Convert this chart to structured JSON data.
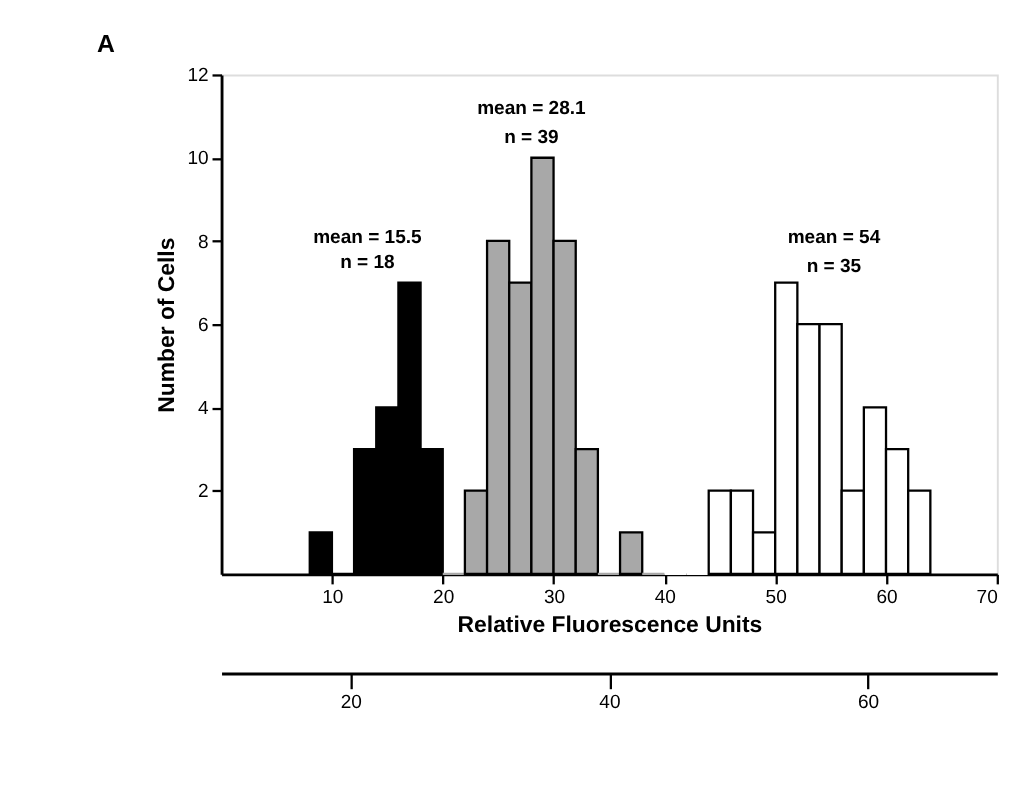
{
  "chart_data": {
    "type": "histogram",
    "title": "A",
    "xlabel": "Relative Fluorescence Units",
    "ylabel": "Number of Cells",
    "bins": [
      8,
      10,
      12,
      14,
      16,
      18,
      20,
      22,
      24,
      26,
      28,
      30,
      32,
      34,
      36,
      38,
      40,
      42,
      44,
      46,
      48,
      50,
      52,
      54,
      56,
      58,
      60,
      62,
      64
    ],
    "values": [
      1,
      0,
      3,
      4,
      7,
      3,
      0,
      2,
      8,
      7,
      10,
      8,
      3,
      0,
      1,
      0,
      0,
      0,
      2,
      2,
      1,
      7,
      6,
      6,
      2,
      4,
      3,
      2
    ],
    "colors": [
      "#000000",
      "#000000",
      "#000000",
      "#000000",
      "#000000",
      "#000000",
      "#a8a8a8",
      "#a8a8a8",
      "#a8a8a8",
      "#a8a8a8",
      "#a8a8a8",
      "#a8a8a8",
      "#a8a8a8",
      "#a8a8a8",
      "#a8a8a8",
      "#a8a8a8",
      "#ffffff",
      "#ffffff",
      "#ffffff",
      "#ffffff",
      "#ffffff",
      "#ffffff",
      "#ffffff",
      "#ffffff",
      "#ffffff",
      "#ffffff",
      "#ffffff",
      "#ffffff"
    ],
    "annotations": [
      "mean = 15.5",
      "n = 18",
      "mean = 28.1",
      "n = 39",
      "mean = 54",
      "n = 35"
    ],
    "xlim": [
      0,
      70
    ],
    "xticks": [
      10,
      20,
      30,
      40,
      50,
      60,
      70
    ],
    "ylim": [
      0,
      12
    ],
    "yticks": [
      2,
      4,
      6,
      8,
      10,
      12
    ],
    "x2lim": [
      10,
      70
    ],
    "x2ticks": [
      20,
      40,
      60
    ],
    "grid": false
  }
}
